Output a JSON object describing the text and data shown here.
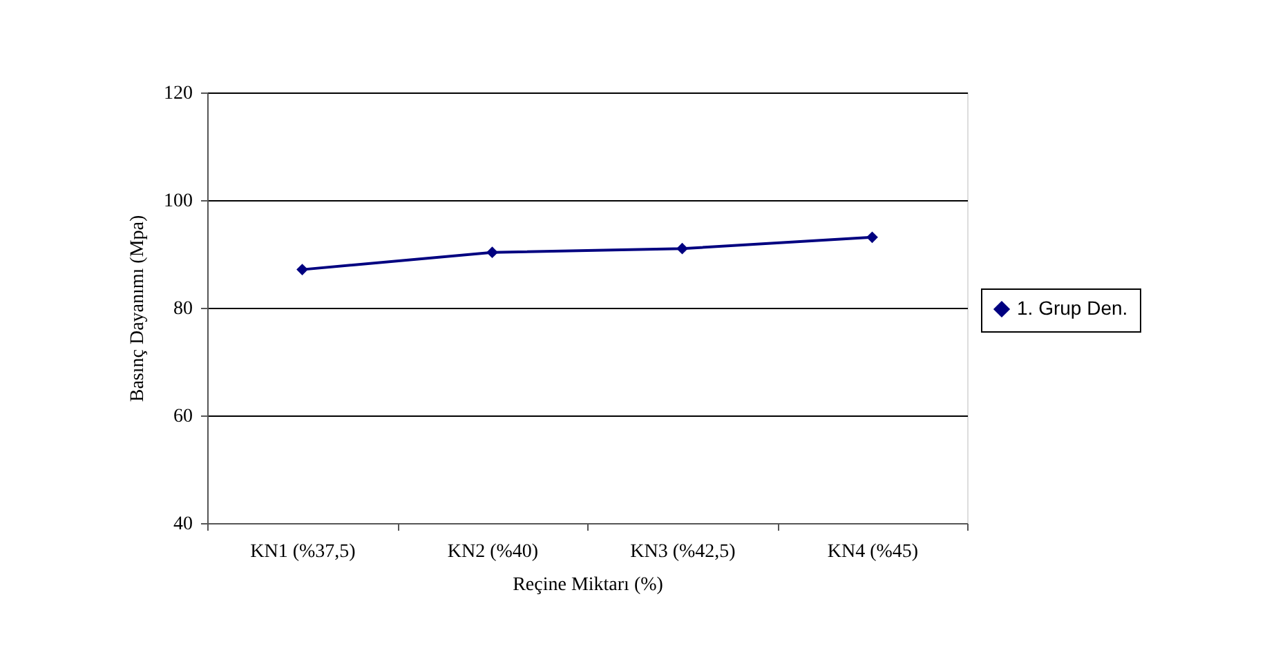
{
  "chart_data": {
    "type": "line",
    "xlabel": "Reçine Miktarı (%)",
    "ylabel": "Basınç Dayanımı (Mpa)",
    "categories": [
      "KN1 (%37,5)",
      "KN2 (%40)",
      "KN3 (%42,5)",
      "KN4 (%45)"
    ],
    "series": [
      {
        "name": "1. Grup Den.",
        "color": "#000080",
        "values": [
          87.1,
          90.3,
          91.0,
          93.1
        ]
      }
    ],
    "ylim": [
      40,
      120
    ],
    "yticks": [
      40,
      60,
      80,
      100,
      120
    ],
    "grid": "y",
    "legend": "right",
    "marker": "diamond",
    "line_style": "solid"
  }
}
